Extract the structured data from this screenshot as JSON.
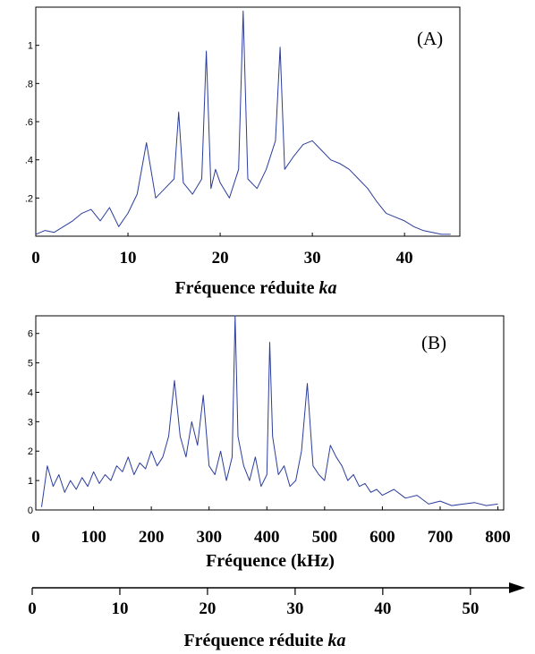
{
  "colors": {
    "line": "#2b3d9c",
    "axis": "#000000",
    "background": "#ffffff"
  },
  "chart_data": [
    {
      "type": "line",
      "panel_label": "(A)",
      "title": "",
      "xlabel": "Fréquence réduite",
      "xlabel_var": "ka",
      "ylabel": "",
      "xlim": [
        0,
        46
      ],
      "ylim": [
        0,
        1.2
      ],
      "x_ticks": [
        "0",
        "10",
        "20",
        "30",
        "40"
      ],
      "x_tick_values": [
        0,
        10,
        20,
        30,
        40
      ],
      "y_ticks": [
        ".2",
        ".4",
        ".6",
        ".8",
        "1"
      ],
      "y_tick_values": [
        0.2,
        0.4,
        0.6,
        0.8,
        1.0
      ],
      "grid": false,
      "series": [
        {
          "x": [
            0,
            1,
            2,
            3,
            4,
            5,
            6,
            7,
            8,
            9,
            10,
            11,
            12,
            13,
            14,
            15,
            15.5,
            16,
            17,
            18,
            18.5,
            19,
            19.5,
            20,
            21,
            22,
            22.5,
            23,
            24,
            25,
            26,
            26.5,
            27,
            28,
            29,
            30,
            31,
            32,
            33,
            34,
            35,
            36,
            37,
            38,
            39,
            40,
            41,
            42,
            43,
            44,
            45
          ],
          "y": [
            0.01,
            0.03,
            0.02,
            0.05,
            0.08,
            0.12,
            0.14,
            0.08,
            0.15,
            0.05,
            0.12,
            0.22,
            0.49,
            0.2,
            0.25,
            0.3,
            0.65,
            0.28,
            0.22,
            0.3,
            0.97,
            0.25,
            0.35,
            0.28,
            0.2,
            0.35,
            1.18,
            0.3,
            0.25,
            0.35,
            0.5,
            0.99,
            0.35,
            0.42,
            0.48,
            0.5,
            0.45,
            0.4,
            0.38,
            0.35,
            0.3,
            0.25,
            0.18,
            0.12,
            0.1,
            0.08,
            0.05,
            0.03,
            0.02,
            0.01,
            0.01
          ]
        }
      ]
    },
    {
      "type": "line",
      "panel_label": "(B)",
      "title": "",
      "xlabel": "Fréquence (kHz)",
      "ylabel": "",
      "xlim": [
        0,
        810
      ],
      "ylim": [
        0,
        6.6
      ],
      "x_ticks": [
        "0",
        "100",
        "200",
        "300",
        "400",
        "500",
        "600",
        "700",
        "800"
      ],
      "x_tick_values": [
        0,
        100,
        200,
        300,
        400,
        500,
        600,
        700,
        800
      ],
      "y_ticks": [
        "0",
        "1",
        "2",
        "3",
        "4",
        "5",
        "6"
      ],
      "y_tick_values": [
        0,
        1,
        2,
        3,
        4,
        5,
        6
      ],
      "grid": false,
      "series": [
        {
          "x": [
            10,
            20,
            30,
            40,
            50,
            60,
            70,
            80,
            90,
            100,
            110,
            120,
            130,
            140,
            150,
            160,
            170,
            180,
            190,
            200,
            210,
            220,
            230,
            240,
            250,
            260,
            270,
            280,
            290,
            300,
            310,
            320,
            330,
            340,
            345,
            350,
            360,
            370,
            380,
            390,
            400,
            405,
            410,
            420,
            430,
            440,
            450,
            460,
            470,
            480,
            490,
            500,
            510,
            520,
            530,
            540,
            550,
            560,
            570,
            580,
            590,
            600,
            620,
            640,
            660,
            680,
            700,
            720,
            740,
            760,
            780,
            800
          ],
          "y": [
            0.1,
            1.5,
            0.8,
            1.2,
            0.6,
            1.0,
            0.7,
            1.1,
            0.8,
            1.3,
            0.9,
            1.2,
            1.0,
            1.5,
            1.3,
            1.8,
            1.2,
            1.6,
            1.4,
            2.0,
            1.5,
            1.8,
            2.5,
            4.4,
            2.5,
            1.8,
            3.0,
            2.2,
            3.9,
            1.5,
            1.2,
            2.0,
            1.0,
            1.8,
            6.6,
            2.5,
            1.5,
            1.0,
            1.8,
            0.8,
            1.2,
            5.7,
            2.5,
            1.2,
            1.5,
            0.8,
            1.0,
            2.0,
            4.3,
            1.5,
            1.2,
            1.0,
            2.2,
            1.8,
            1.5,
            1.0,
            1.2,
            0.8,
            0.9,
            0.6,
            0.7,
            0.5,
            0.7,
            0.4,
            0.5,
            0.2,
            0.3,
            0.15,
            0.2,
            0.25,
            0.15,
            0.2
          ]
        }
      ]
    },
    {
      "type": "axis",
      "xlabel": "Fréquence réduite",
      "xlabel_var": "ka",
      "xlim": [
        0,
        54
      ],
      "x_ticks": [
        "0",
        "10",
        "20",
        "30",
        "40",
        "50"
      ],
      "x_tick_values": [
        0,
        10,
        20,
        30,
        40,
        50
      ]
    }
  ]
}
